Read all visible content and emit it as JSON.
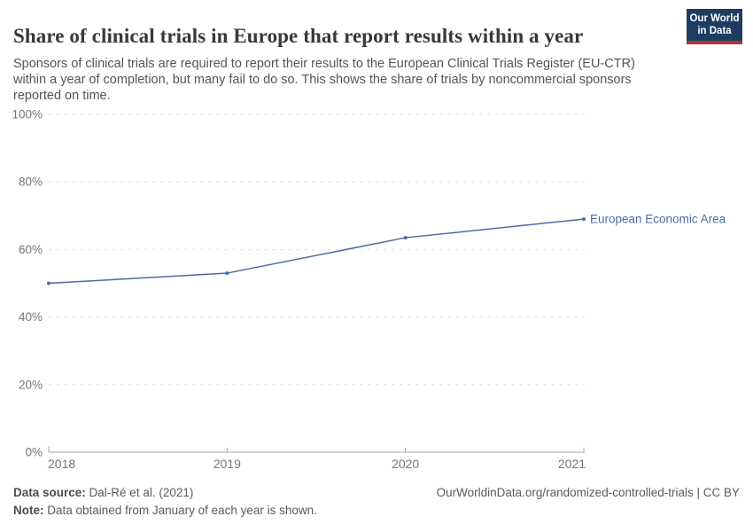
{
  "header": {
    "title": "Share of clinical trials in Europe that report results within a year",
    "subtitle": "Sponsors of clinical trials are required to report their results to the European Clinical Trials Register (EU-CTR) within a year of completion, but many fail to do so. This shows the share of trials by noncommercial sponsors reported on time.",
    "logo": {
      "line1": "Our World",
      "line2": "in Data",
      "bg_color": "#1d3d63",
      "accent_color": "#b5332e"
    }
  },
  "chart_data": {
    "type": "line",
    "title": "Share of clinical trials in Europe that report results within a year",
    "x": [
      2018,
      2019,
      2020,
      2021
    ],
    "x_tick_labels": [
      "2018",
      "2019",
      "2020",
      "2021"
    ],
    "series": [
      {
        "name": "European Economic Area",
        "values": [
          50,
          53,
          63.5,
          69
        ],
        "color": "#4c6ba3"
      }
    ],
    "xlabel": "",
    "ylabel": "",
    "ylim": [
      0,
      100
    ],
    "yticks": [
      0,
      20,
      40,
      60,
      80,
      100
    ],
    "ytick_suffix": "%",
    "grid": "horizontal-dashed",
    "grid_color": "#e0e0e0",
    "axis_color": "#a5a5a5",
    "tick_label_color": "#757575",
    "legend": "line-end-label"
  },
  "footer": {
    "datasource_label": "Data source:",
    "datasource_value": "Dal-Ré et al. (2021)",
    "note_label": "Note:",
    "note_value": "Data obtained from January of each year is shown.",
    "attribution": "OurWorldinData.org/randomized-controlled-trials | CC BY"
  }
}
